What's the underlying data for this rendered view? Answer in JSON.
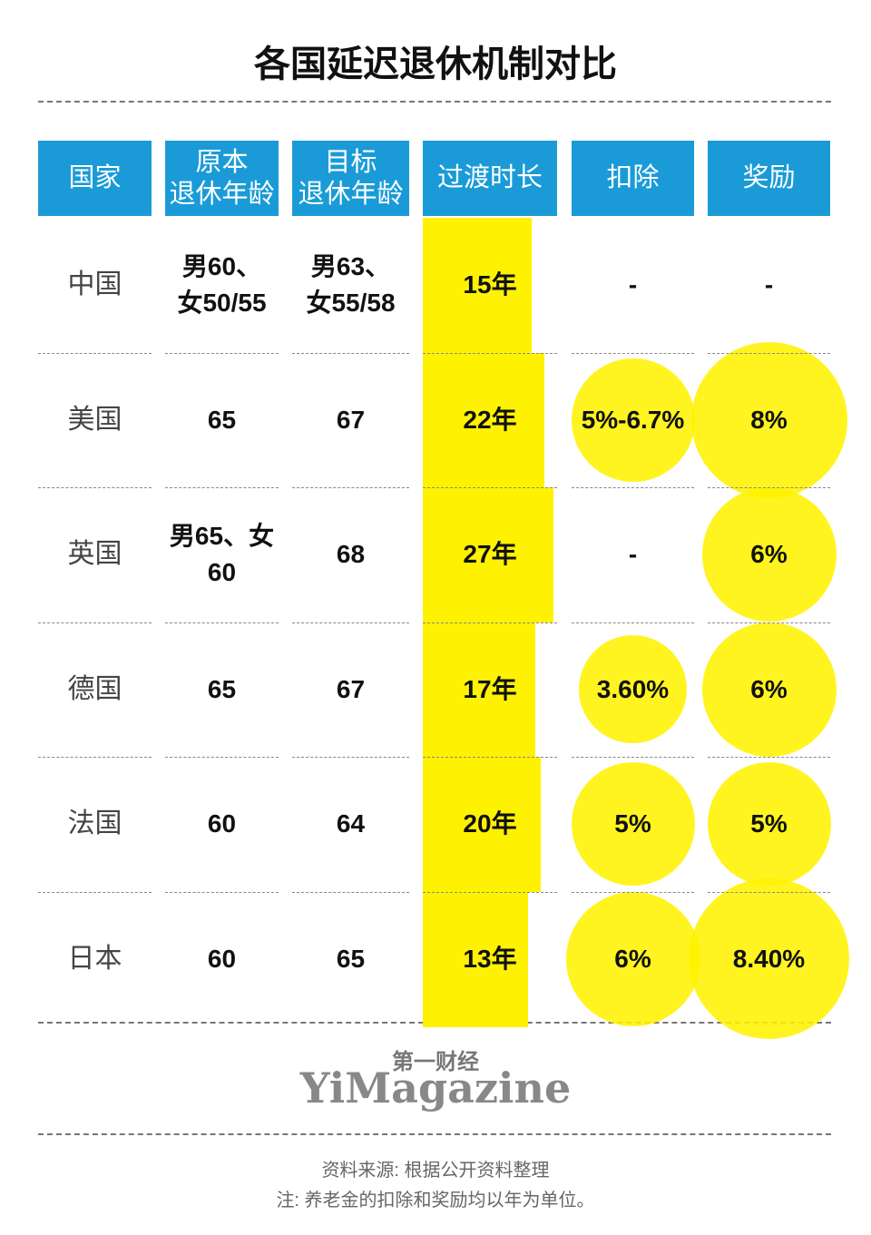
{
  "title": "各国延迟退休机制对比",
  "table": {
    "header": [
      "国家",
      [
        "原本",
        "退休年龄"
      ],
      [
        "目标",
        "退休年龄"
      ],
      "过渡时长",
      "扣除",
      "奖励"
    ],
    "rows": [
      [
        "中国",
        [
          "男60、",
          "女50/55"
        ],
        [
          "男63、",
          "女55/58"
        ],
        "15年",
        "-",
        "-"
      ],
      [
        "美国",
        "65",
        "67",
        "22年",
        "5%-6.7%",
        "8%"
      ],
      [
        "英国",
        "男65、女60",
        "68",
        "27年",
        "-",
        "6%"
      ],
      [
        "德国",
        "65",
        "67",
        "17年",
        "3.60%",
        "6%"
      ],
      [
        "法国",
        "60",
        "64",
        "20年",
        "5%",
        "5%"
      ],
      [
        "日本",
        "60",
        "65",
        "13年",
        "6%",
        "8.40%"
      ]
    ]
  },
  "logo": {
    "cn": "第一财经",
    "en": "YiMagazine"
  },
  "footer": {
    "source": "资料来源: 根据公开资料整理",
    "note": "注: 养老金的扣除和奖励均以年为单位。"
  }
}
